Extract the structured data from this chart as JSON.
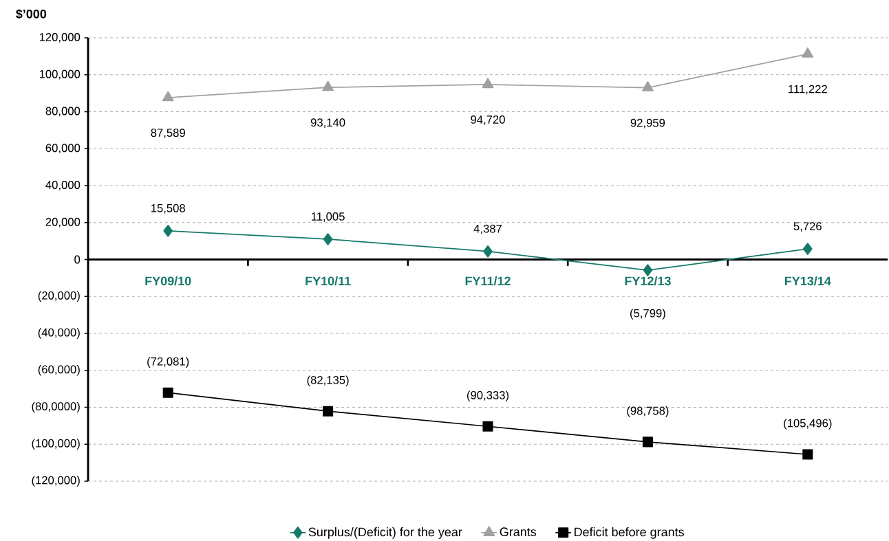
{
  "chart_data": {
    "type": "line",
    "ylabel": "$’000",
    "categories": [
      "FY09/10",
      "FY10/11",
      "FY11/12",
      "FY12/13",
      "FY13/14"
    ],
    "series": [
      {
        "name": "Surplus/(Deficit) for the year",
        "color": "#157a68",
        "marker": "diamond",
        "values": [
          15508,
          11005,
          4387,
          -5799,
          5726
        ],
        "value_labels": [
          "15,508",
          "11,005",
          "4,387",
          "(5,799)",
          "5,726"
        ]
      },
      {
        "name": "Grants",
        "color": "#a0a0a0",
        "marker": "triangle",
        "values": [
          87589,
          93140,
          94720,
          92959,
          111222
        ],
        "value_labels": [
          "87,589",
          "93,140",
          "94,720",
          "92,959",
          "111,222"
        ]
      },
      {
        "name": "Deficit before grants",
        "color": "#000000",
        "marker": "square",
        "values": [
          -72081,
          -82135,
          -90333,
          -98758,
          -105496
        ],
        "value_labels": [
          "(72,081)",
          "(82,135)",
          "(90,333)",
          "(98,758)",
          "(105,496)"
        ]
      }
    ],
    "ylim": [
      -120000,
      120000
    ],
    "yticks": [
      {
        "value": 120000,
        "label": "120,000"
      },
      {
        "value": 100000,
        "label": "100,000"
      },
      {
        "value": 80000,
        "label": "80,000"
      },
      {
        "value": 60000,
        "label": "60,000"
      },
      {
        "value": 40000,
        "label": "40,000"
      },
      {
        "value": 20000,
        "label": "20,000"
      },
      {
        "value": 0,
        "label": "0"
      },
      {
        "value": -20000,
        "label": "(20,000)"
      },
      {
        "value": -40000,
        "label": "(40,000)"
      },
      {
        "value": -60000,
        "label": "(60,000)"
      },
      {
        "value": -80000,
        "label": "(80,0000)"
      },
      {
        "value": -100000,
        "label": "(100,000)"
      },
      {
        "value": -120000,
        "label": "(120,000)"
      }
    ],
    "grid": "y",
    "legend": "bottom",
    "line_style": "solid"
  }
}
